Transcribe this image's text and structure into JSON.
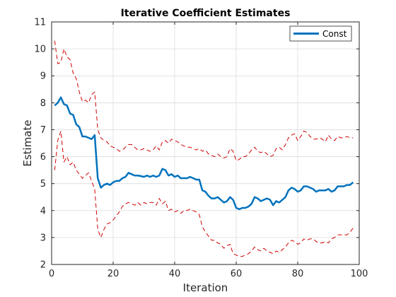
{
  "chart_data": {
    "type": "line",
    "title": "Iterative Coefficient Estimates",
    "xlabel": "Iteration",
    "ylabel": "Estimate",
    "xlim": [
      0,
      100
    ],
    "ylim": [
      2,
      11
    ],
    "xticks": [
      "0",
      "20",
      "40",
      "60",
      "80",
      "100"
    ],
    "yticks": [
      "2",
      "3",
      "4",
      "5",
      "6",
      "7",
      "8",
      "9",
      "10",
      "11"
    ],
    "grid": true,
    "legend": {
      "placement": "top-right",
      "entries": [
        "Const"
      ]
    },
    "series": [
      {
        "name": "Const",
        "color": "#0072BD",
        "style": "solid",
        "x": [
          1,
          2,
          3,
          4,
          5,
          6,
          7,
          8,
          9,
          10,
          11,
          12,
          13,
          14,
          15,
          16,
          17,
          18,
          19,
          20,
          21,
          22,
          23,
          24,
          25,
          26,
          27,
          28,
          29,
          30,
          31,
          32,
          33,
          34,
          35,
          36,
          37,
          38,
          39,
          40,
          41,
          42,
          43,
          44,
          45,
          46,
          47,
          48,
          49,
          50,
          51,
          52,
          53,
          54,
          55,
          56,
          57,
          58,
          59,
          60,
          61,
          62,
          63,
          64,
          65,
          66,
          67,
          68,
          69,
          70,
          71,
          72,
          73,
          74,
          75,
          76,
          77,
          78,
          79,
          80,
          81,
          82,
          83,
          84,
          85,
          86,
          87,
          88,
          89,
          90,
          91,
          92,
          93,
          94,
          95,
          96,
          97,
          98
        ],
        "y": [
          7.9,
          8.0,
          8.2,
          7.95,
          7.9,
          7.6,
          7.55,
          7.2,
          7.1,
          6.75,
          6.75,
          6.7,
          6.65,
          6.8,
          5.2,
          4.85,
          4.95,
          5.0,
          4.95,
          5.05,
          5.1,
          5.1,
          5.2,
          5.25,
          5.4,
          5.35,
          5.3,
          5.3,
          5.28,
          5.25,
          5.3,
          5.25,
          5.3,
          5.25,
          5.3,
          5.55,
          5.5,
          5.3,
          5.35,
          5.25,
          5.3,
          5.2,
          5.2,
          5.2,
          5.25,
          5.2,
          5.15,
          5.15,
          4.75,
          4.7,
          4.55,
          4.45,
          4.45,
          4.5,
          4.4,
          4.3,
          4.35,
          4.5,
          4.4,
          4.1,
          4.05,
          4.1,
          4.1,
          4.15,
          4.25,
          4.5,
          4.45,
          4.35,
          4.4,
          4.45,
          4.4,
          4.2,
          4.35,
          4.3,
          4.4,
          4.5,
          4.75,
          4.85,
          4.8,
          4.7,
          4.75,
          4.9,
          4.9,
          4.85,
          4.8,
          4.7,
          4.75,
          4.75,
          4.75,
          4.8,
          4.7,
          4.75,
          4.9,
          4.9,
          4.9,
          4.95,
          4.95,
          5.05
        ]
      },
      {
        "name": "",
        "color": "#D00000",
        "style": "dashed",
        "x": [
          1,
          2,
          3,
          4,
          5,
          6,
          7,
          8,
          9,
          10,
          11,
          12,
          13,
          14,
          15,
          16,
          17,
          18,
          19,
          20,
          21,
          22,
          23,
          24,
          25,
          26,
          27,
          28,
          29,
          30,
          31,
          32,
          33,
          34,
          35,
          36,
          37,
          38,
          39,
          40,
          41,
          42,
          43,
          44,
          45,
          46,
          47,
          48,
          49,
          50,
          51,
          52,
          53,
          54,
          55,
          56,
          57,
          58,
          59,
          60,
          61,
          62,
          63,
          64,
          65,
          66,
          67,
          68,
          69,
          70,
          71,
          72,
          73,
          74,
          75,
          76,
          77,
          78,
          79,
          80,
          81,
          82,
          83,
          84,
          85,
          86,
          87,
          88,
          89,
          90,
          91,
          92,
          93,
          94,
          95,
          96,
          97,
          98
        ],
        "y": [
          10.3,
          9.45,
          9.5,
          10.0,
          9.7,
          9.6,
          9.1,
          8.9,
          8.4,
          8.05,
          8.1,
          8.0,
          8.3,
          8.4,
          7.0,
          6.7,
          6.6,
          6.55,
          6.4,
          6.35,
          6.3,
          6.2,
          6.25,
          6.35,
          6.45,
          6.45,
          6.35,
          6.25,
          6.25,
          6.3,
          6.25,
          6.2,
          6.25,
          6.4,
          6.25,
          6.55,
          6.6,
          6.5,
          6.65,
          6.6,
          6.55,
          6.45,
          6.4,
          6.35,
          6.35,
          6.3,
          6.25,
          6.3,
          6.2,
          6.25,
          6.1,
          6.05,
          6.0,
          6.1,
          6.0,
          5.95,
          6.0,
          6.3,
          6.2,
          5.85,
          5.9,
          6.0,
          6.0,
          6.1,
          6.25,
          6.35,
          6.2,
          6.15,
          6.2,
          6.1,
          6.0,
          6.05,
          6.3,
          6.35,
          6.25,
          6.45,
          6.7,
          6.8,
          6.85,
          6.6,
          6.75,
          6.95,
          6.9,
          6.75,
          6.65,
          6.65,
          6.7,
          6.65,
          6.55,
          6.8,
          6.65,
          6.6,
          6.75,
          6.7,
          6.7,
          6.75,
          6.7,
          6.7
        ]
      },
      {
        "name": "",
        "color": "#D00000",
        "style": "dashed",
        "x": [
          1,
          2,
          3,
          4,
          5,
          6,
          7,
          8,
          9,
          10,
          11,
          12,
          13,
          14,
          15,
          16,
          17,
          18,
          19,
          20,
          21,
          22,
          23,
          24,
          25,
          26,
          27,
          28,
          29,
          30,
          31,
          32,
          33,
          34,
          35,
          36,
          37,
          38,
          39,
          40,
          41,
          42,
          43,
          44,
          45,
          46,
          47,
          48,
          49,
          50,
          51,
          52,
          53,
          54,
          55,
          56,
          57,
          58,
          59,
          60,
          61,
          62,
          63,
          64,
          65,
          66,
          67,
          68,
          69,
          70,
          71,
          72,
          73,
          74,
          75,
          76,
          77,
          78,
          79,
          80,
          81,
          82,
          83,
          84,
          85,
          86,
          87,
          88,
          89,
          90,
          91,
          92,
          93,
          94,
          95,
          96,
          97,
          98
        ],
        "y": [
          5.5,
          6.6,
          6.95,
          5.8,
          6.0,
          5.7,
          5.8,
          5.5,
          5.35,
          5.2,
          5.3,
          5.4,
          5.1,
          4.8,
          3.3,
          3.0,
          3.3,
          3.5,
          3.55,
          3.65,
          3.8,
          3.95,
          4.15,
          4.25,
          4.3,
          4.25,
          4.2,
          4.3,
          4.2,
          4.3,
          4.25,
          4.3,
          4.3,
          4.2,
          4.45,
          4.25,
          4.35,
          4.0,
          4.05,
          3.95,
          4.0,
          3.9,
          4.0,
          4.0,
          4.05,
          4.0,
          3.95,
          3.85,
          3.4,
          3.2,
          3.05,
          2.9,
          2.9,
          2.8,
          2.75,
          2.6,
          2.7,
          2.75,
          2.4,
          2.35,
          2.3,
          2.3,
          2.35,
          2.4,
          2.5,
          2.65,
          2.55,
          2.5,
          2.6,
          2.5,
          2.45,
          2.4,
          2.5,
          2.45,
          2.55,
          2.65,
          2.8,
          2.9,
          2.85,
          2.75,
          2.8,
          2.95,
          2.9,
          2.95,
          2.95,
          2.85,
          2.8,
          2.8,
          2.85,
          2.8,
          2.95,
          3.0,
          3.1,
          3.1,
          3.1,
          3.1,
          3.2,
          3.35
        ]
      }
    ]
  }
}
